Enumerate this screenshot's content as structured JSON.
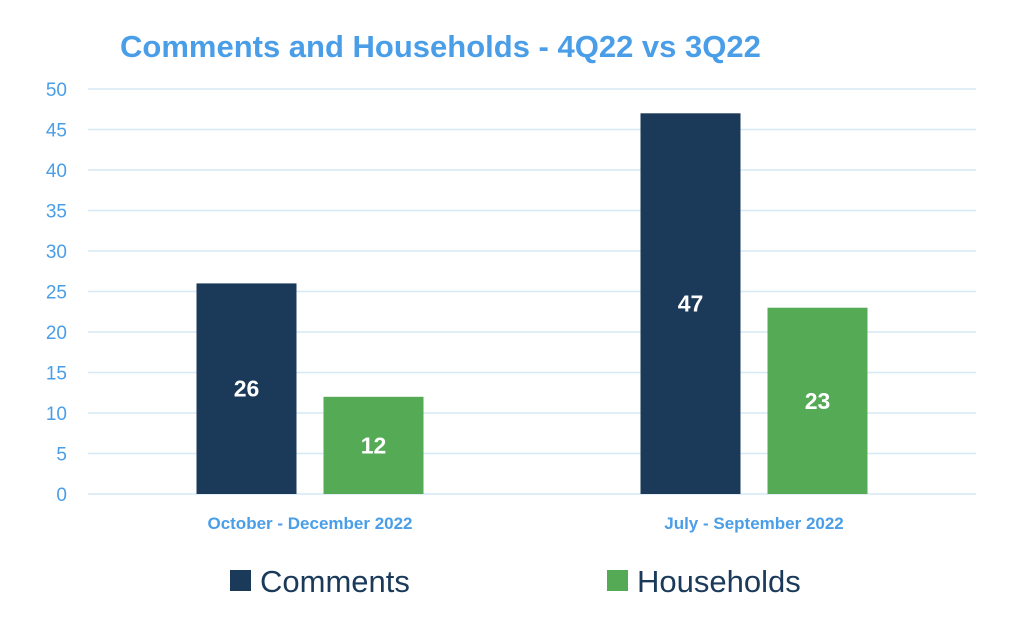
{
  "chart_data": {
    "type": "bar",
    "title": "Comments and Households - 4Q22 vs 3Q22",
    "categories": [
      "October - December 2022",
      "July - September 2022"
    ],
    "series": [
      {
        "name": "Comments",
        "values": [
          26,
          47
        ],
        "color": "#1b3a5a"
      },
      {
        "name": "Households",
        "values": [
          12,
          23
        ],
        "color": "#55aa55"
      }
    ],
    "ylim": [
      0,
      50
    ],
    "yticks": [
      0,
      5,
      10,
      15,
      20,
      25,
      30,
      35,
      40,
      45,
      50
    ],
    "grid": true,
    "legend_position": "bottom",
    "data_labels": true
  },
  "colors": {
    "title": "#4a9ee8",
    "axis_text": "#4a9ee8",
    "gridline": "#d6e9f6",
    "legend_text": "#1b3a5a"
  }
}
